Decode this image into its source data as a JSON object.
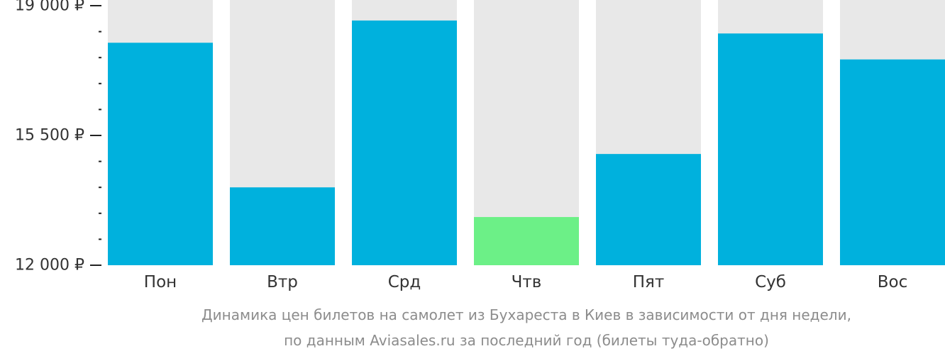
{
  "chart_data": {
    "type": "bar",
    "categories": [
      "Пон",
      "Втр",
      "Срд",
      "Чтв",
      "Пят",
      "Суб",
      "Вос"
    ],
    "values": [
      18000,
      14100,
      18600,
      13300,
      15000,
      18250,
      17550
    ],
    "ylim": [
      12000,
      19000
    ],
    "y_ticks": [
      12000,
      15500,
      19000
    ],
    "y_tick_labels": [
      "12 000 ₽",
      "15 500 ₽",
      "19 000 ₽"
    ],
    "y_minor_step": 700,
    "highlight_index": 3,
    "colors": {
      "bar": "#00b1dd",
      "highlight": "#6cf087",
      "track": "#e8e8e8",
      "axis": "#222222"
    },
    "caption": [
      "Динамика цен билетов на самолет из Бухареста в Киев в зависимости от дня недели,",
      "по данным Aviasales.ru за последний год (билеты туда-обратно)"
    ]
  }
}
